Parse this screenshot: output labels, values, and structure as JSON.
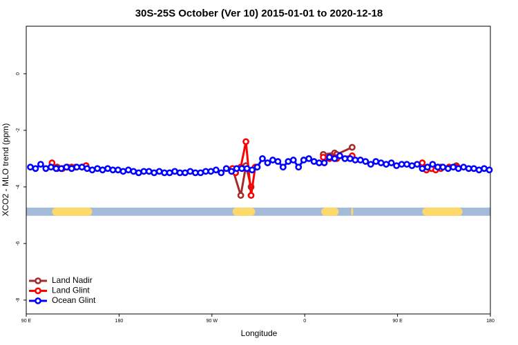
{
  "chart_data": {
    "type": "line",
    "title": "30S-25S October (Ver 10)   2015-01-01 to 2020-12-18",
    "x_label": "Longitude",
    "y_label": "XCO2 - MLO trend (ppm)",
    "xlim": [
      90,
      540
    ],
    "ylim": [
      -8.49,
      1.68
    ],
    "xticks": [
      {
        "value": 90,
        "label": "90 E"
      },
      180,
      {
        "value": 270,
        "label": "90 W"
      },
      {
        "value": 360,
        "label": "0"
      },
      {
        "value": 450,
        "label": "90 E"
      },
      {
        "value": 540,
        "label": "180"
      }
    ],
    "yticks": [
      0,
      -2,
      -4,
      -6,
      -8
    ],
    "legend": "bottom-left",
    "land_mask": {
      "y": [
        -4.73,
        -5.02
      ],
      "ocean_color": "#a3bbd8",
      "land_color": "#fcd96a",
      "land": [
        [
          115,
          154
        ],
        [
          290,
          312
        ],
        [
          376,
          393
        ],
        [
          405,
          407
        ],
        [
          474,
          513
        ]
      ]
    },
    "series": [
      {
        "name": "Land Nadir",
        "color": "#a52a2a",
        "x": [
          115,
          120,
          125,
          134,
          144,
          148,
          null,
          290,
          298,
          303,
          308,
          null,
          378,
          389,
          391,
          406,
          null,
          478,
          483,
          492,
          500,
          507
        ],
        "values": [
          -3.25,
          -3.3,
          -3.35,
          -3.3,
          -3.3,
          -3.25,
          null,
          -3.35,
          -4.3,
          -3.25,
          -4.0,
          null,
          -2.85,
          -2.8,
          -2.85,
          -2.6,
          null,
          -3.4,
          -3.35,
          -3.3,
          -3.3,
          -3.25
        ]
      },
      {
        "name": "Land Glint",
        "color": "#ff0000",
        "x": [
          115,
          120,
          125,
          130,
          134,
          138,
          148,
          null,
          290,
          293,
          298,
          303,
          308,
          312,
          null,
          378,
          384,
          389,
          391,
          406,
          null,
          474,
          478,
          483,
          487,
          492,
          500,
          508
        ],
        "values": [
          -3.15,
          -3.35,
          -3.35,
          -3.3,
          -3.35,
          -3.3,
          -3.25,
          null,
          -3.35,
          -3.5,
          -3.3,
          -2.4,
          -4.3,
          -3.3,
          null,
          -2.95,
          -3.0,
          -2.95,
          -3.0,
          -2.9,
          null,
          -3.15,
          -3.4,
          -3.35,
          -3.4,
          -3.35,
          -3.3,
          -3.3
        ]
      },
      {
        "name": "Ocean Glint",
        "color": "#0000ff",
        "x": [
          94,
          99,
          104,
          109,
          114,
          119,
          124,
          129,
          134,
          139,
          144,
          149,
          154,
          159,
          164,
          169,
          174,
          179,
          184,
          189,
          194,
          199,
          204,
          209,
          214,
          219,
          224,
          229,
          234,
          239,
          244,
          249,
          254,
          259,
          264,
          269,
          274,
          279,
          284,
          289,
          294,
          299,
          304,
          309,
          314,
          319,
          324,
          329,
          334,
          339,
          344,
          349,
          354,
          359,
          364,
          369,
          374,
          379,
          384,
          389,
          394,
          399,
          404,
          409,
          414,
          419,
          424,
          429,
          434,
          439,
          444,
          449,
          454,
          459,
          464,
          469,
          474,
          479,
          484,
          489,
          494,
          499,
          504,
          509,
          514,
          519,
          524,
          529,
          534,
          539
        ],
        "values": [
          -3.3,
          -3.35,
          -3.2,
          -3.35,
          -3.3,
          -3.35,
          -3.35,
          -3.3,
          -3.35,
          -3.3,
          -3.3,
          -3.35,
          -3.4,
          -3.35,
          -3.4,
          -3.35,
          -3.4,
          -3.4,
          -3.45,
          -3.4,
          -3.45,
          -3.5,
          -3.45,
          -3.45,
          -3.5,
          -3.45,
          -3.5,
          -3.5,
          -3.45,
          -3.5,
          -3.5,
          -3.45,
          -3.5,
          -3.5,
          -3.45,
          -3.45,
          -3.4,
          -3.5,
          -3.35,
          -3.45,
          -3.35,
          -3.35,
          -3.35,
          -3.4,
          -3.3,
          -3.0,
          -3.15,
          -3.05,
          -3.1,
          -3.3,
          -3.1,
          -3.05,
          -3.3,
          -3.05,
          -3.0,
          -3.1,
          -3.15,
          -3.15,
          -2.95,
          -3.0,
          -2.9,
          -3.0,
          -3.0,
          -3.05,
          -3.05,
          -3.1,
          -3.2,
          -3.1,
          -3.15,
          -3.2,
          -3.15,
          -3.25,
          -3.2,
          -3.2,
          -3.25,
          -3.2,
          -3.35,
          -3.3,
          -3.2,
          -3.3,
          -3.3,
          -3.35,
          -3.3,
          -3.35,
          -3.3,
          -3.35,
          -3.35,
          -3.4,
          -3.35,
          -3.4
        ]
      }
    ]
  }
}
